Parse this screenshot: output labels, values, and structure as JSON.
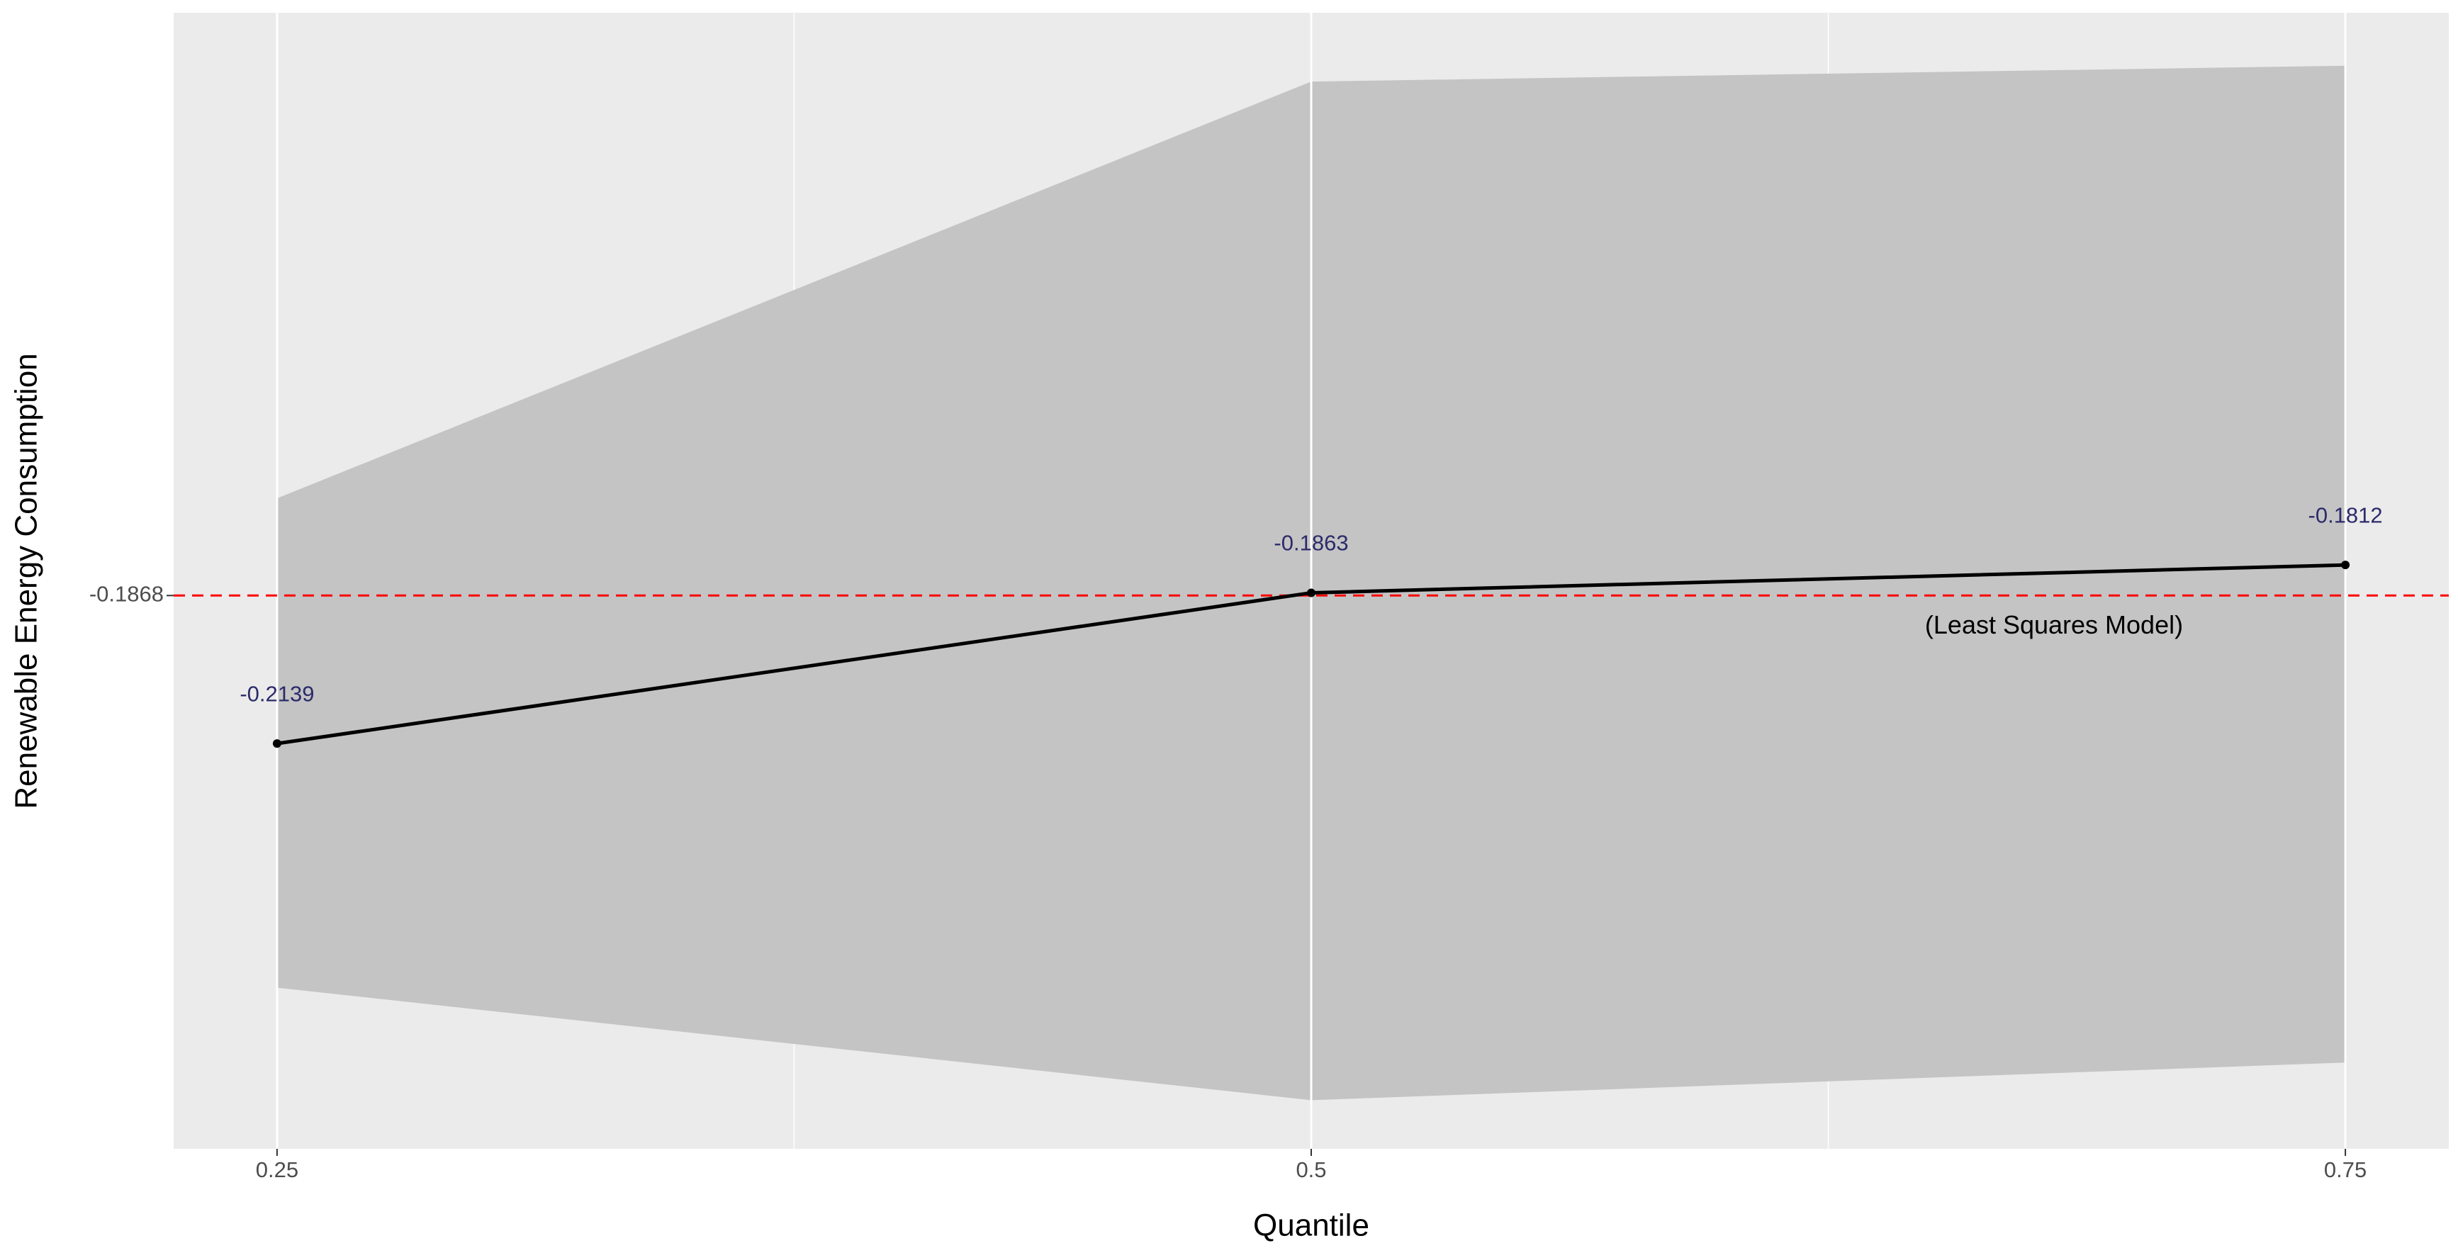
{
  "chart_data": {
    "type": "line",
    "x_label": "Quantile",
    "y_label": "Renewable Energy Consumption",
    "x": [
      0.25,
      0.5,
      0.75
    ],
    "values": [
      -0.2139,
      -0.1863,
      -0.1812
    ],
    "lower": [
      -0.2586,
      -0.2792,
      -0.2723
    ],
    "upper": [
      -0.169,
      -0.0927,
      -0.0898
    ],
    "color": "#000000",
    "band_color": "#c4c4c4",
    "label_color": "#2b2b6b",
    "reference_line": {
      "value": -0.1868,
      "label": "(Least Squares Model)",
      "color": "#ff0000"
    },
    "xlim": [
      0.225,
      0.775
    ],
    "xticks": [
      0.25,
      0.5,
      0.75
    ],
    "ylim": [
      -0.2881,
      -0.0801
    ],
    "yticks": [
      -0.1868
    ],
    "grid": true
  }
}
